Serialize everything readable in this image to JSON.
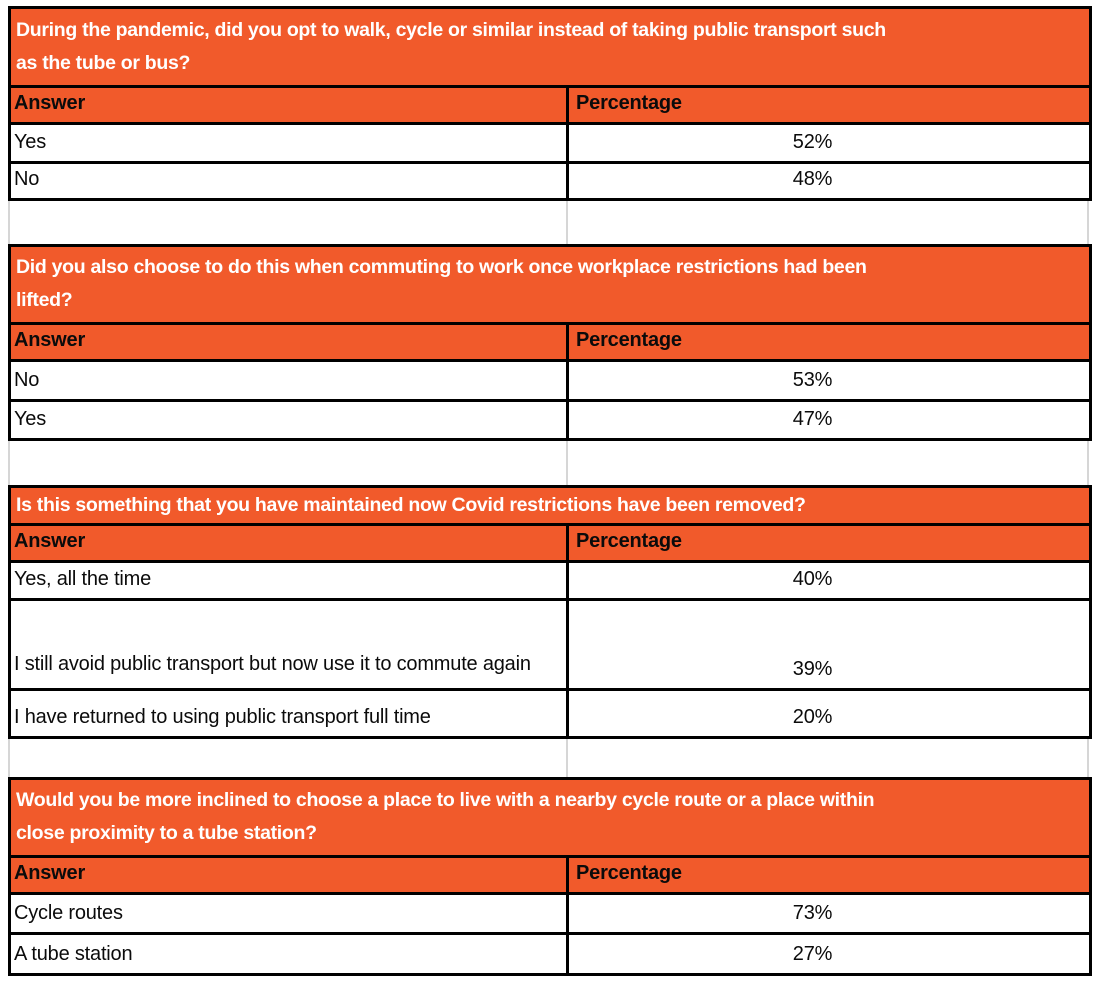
{
  "colors": {
    "accent": "#F15A2B",
    "line": "#000000",
    "grid": "#d6d6d6",
    "ink": "#0b0b0b"
  },
  "tables": [
    {
      "question": "During the pandemic, did you opt to walk, cycle or similar instead of taking public transport such\nas the tube or bus?",
      "columns": [
        "Answer",
        "Percentage"
      ],
      "rows": [
        {
          "answer": "Yes",
          "percentage": "52%"
        },
        {
          "answer": "No",
          "percentage": "48%"
        }
      ]
    },
    {
      "question": "Did you also choose to do this when commuting to work once workplace restrictions had been\nlifted?",
      "columns": [
        "Answer",
        "Percentage"
      ],
      "rows": [
        {
          "answer": "No",
          "percentage": "53%"
        },
        {
          "answer": "Yes",
          "percentage": "47%"
        }
      ]
    },
    {
      "question": "Is this something that you have maintained now Covid restrictions have been removed?",
      "columns": [
        "Answer",
        "Percentage"
      ],
      "rows": [
        {
          "answer": "Yes, all the time",
          "percentage": "40%"
        },
        {
          "answer": "I still avoid public transport but now use it to\ncommute again",
          "percentage": "39%"
        },
        {
          "answer": "I have returned to using public transport full time",
          "percentage": "20%"
        }
      ]
    },
    {
      "question": "Would you be more inclined to choose a place to live with a nearby cycle route or a place within\nclose proximity to a tube station?",
      "columns": [
        "Answer",
        "Percentage"
      ],
      "rows": [
        {
          "answer": "Cycle routes",
          "percentage": "73%"
        },
        {
          "answer": "A tube station",
          "percentage": "27%"
        }
      ]
    }
  ]
}
